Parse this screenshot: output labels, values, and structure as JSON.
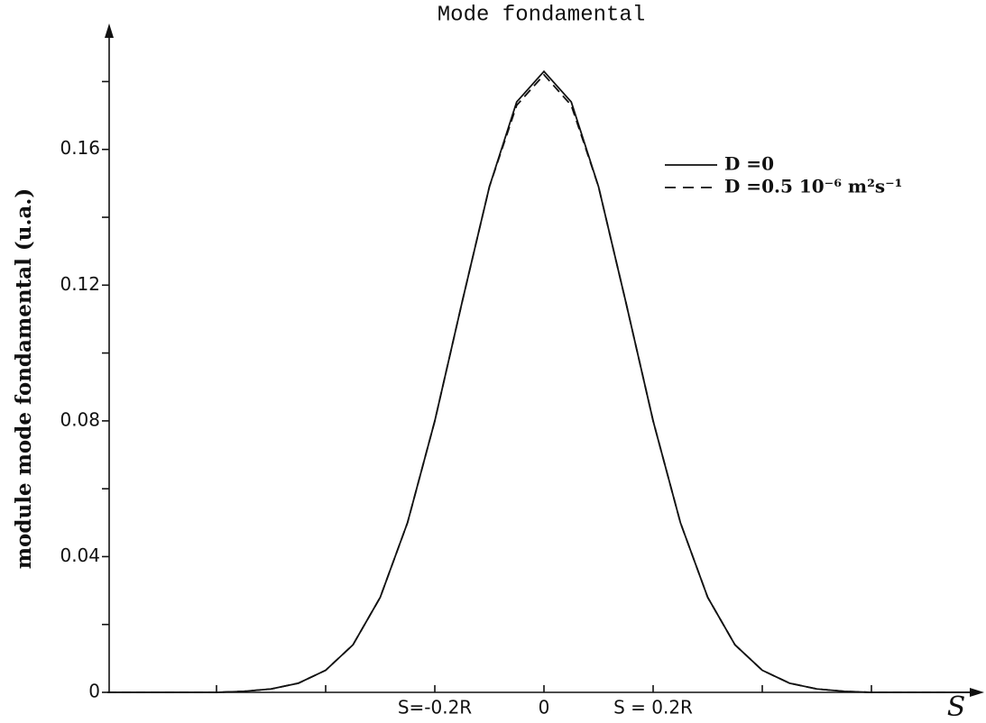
{
  "chart_data": {
    "type": "line",
    "title": "Mode fondamental",
    "y_label": "module mode fondamental (u.a.)",
    "x_label": "S",
    "x": [
      -0.8,
      -0.75,
      -0.7,
      -0.65,
      -0.6,
      -0.55,
      -0.5,
      -0.45,
      -0.4,
      -0.35,
      -0.3,
      -0.25,
      -0.2,
      -0.15,
      -0.1,
      -0.05,
      0,
      0.05,
      0.1,
      0.15,
      0.2,
      0.25,
      0.3,
      0.35,
      0.4,
      0.45,
      0.5,
      0.55,
      0.6,
      0.65,
      0.7,
      0.75,
      0.8
    ],
    "series": [
      {
        "name": "D =0",
        "color": "#111111",
        "dash": false,
        "values": [
          0,
          0,
          0,
          0,
          0,
          0.0003,
          0.001,
          0.0027,
          0.0065,
          0.014,
          0.028,
          0.05,
          0.08,
          0.115,
          0.149,
          0.174,
          0.183,
          0.174,
          0.149,
          0.115,
          0.08,
          0.05,
          0.028,
          0.014,
          0.0065,
          0.0027,
          0.001,
          0.0003,
          0,
          0,
          0,
          0,
          0
        ]
      },
      {
        "name": "D =0.5  10⁻⁶ m²s⁻¹",
        "color": "#111111",
        "dash": true,
        "values": [
          0,
          0,
          0,
          0,
          0,
          0.0003,
          0.001,
          0.0027,
          0.0065,
          0.014,
          0.028,
          0.05,
          0.08,
          0.115,
          0.149,
          0.173,
          0.182,
          0.173,
          0.149,
          0.115,
          0.08,
          0.05,
          0.028,
          0.014,
          0.0065,
          0.0027,
          0.001,
          0.0003,
          0,
          0,
          0,
          0,
          0
        ]
      }
    ],
    "xlim": [
      -0.8,
      0.8
    ],
    "xticks": [
      {
        "value": -0.2,
        "label": "S=-0.2R"
      },
      0,
      {
        "value": 0.2,
        "label": "S = 0.2R"
      }
    ],
    "xminor_ticks": [
      -0.6,
      -0.4,
      0.4,
      0.6
    ],
    "ylim": [
      0,
      0.195
    ],
    "yticks": [
      0,
      0.04,
      0.08,
      0.12,
      0.16
    ],
    "yminor_ticks": [
      0.02,
      0.06,
      0.1,
      0.14,
      0.18
    ],
    "legend": "top-right"
  }
}
